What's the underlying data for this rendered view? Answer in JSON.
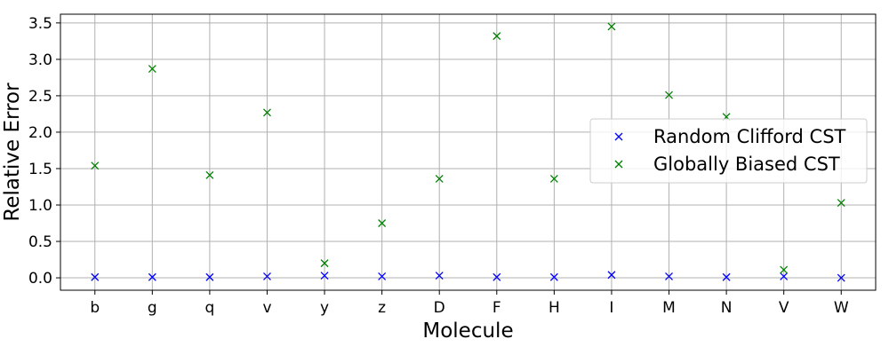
{
  "chart_data": {
    "type": "scatter",
    "xlabel": "Molecule",
    "ylabel": "Relative Error",
    "categories": [
      "b",
      "g",
      "q",
      "v",
      "y",
      "z",
      "D",
      "F",
      "H",
      "I",
      "M",
      "N",
      "V",
      "W"
    ],
    "ylim": [
      -0.17,
      3.62
    ],
    "yticks": [
      "0.0",
      "0.5",
      "1.0",
      "1.5",
      "2.0",
      "2.5",
      "3.0",
      "3.5"
    ],
    "grid": true,
    "legend_position": "center-right",
    "series": [
      {
        "name": "Random Clifford CST",
        "color": "#0000ff",
        "marker": "x",
        "values": [
          0.01,
          0.01,
          0.01,
          0.02,
          0.03,
          0.02,
          0.03,
          0.01,
          0.01,
          0.04,
          0.02,
          0.01,
          0.02,
          0.0
        ]
      },
      {
        "name": "Globally Biased CST",
        "color": "#008000",
        "marker": "x",
        "values": [
          1.54,
          2.87,
          1.41,
          2.27,
          0.2,
          0.75,
          1.36,
          3.32,
          1.36,
          3.45,
          2.51,
          2.21,
          0.11,
          1.03
        ]
      }
    ]
  }
}
